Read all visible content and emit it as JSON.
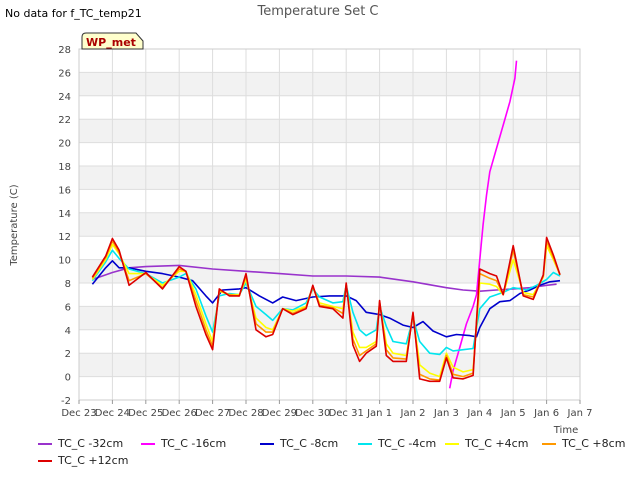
{
  "chart_data": {
    "type": "line",
    "title": "Temperature Set C",
    "corner_note": "No data for f_TC_temp21",
    "site_badge": "WP_met",
    "xlabel": "Time",
    "ylabel": "Temperature (C)",
    "ylim": [
      -2,
      28
    ],
    "yticks": [
      -2,
      0,
      2,
      4,
      6,
      8,
      10,
      12,
      14,
      16,
      18,
      20,
      22,
      24,
      26,
      28
    ],
    "xlim": [
      0,
      15
    ],
    "xticks": [
      {
        "x": 0,
        "label": "Dec 23"
      },
      {
        "x": 1,
        "label": "Dec 24"
      },
      {
        "x": 2,
        "label": "Dec 25"
      },
      {
        "x": 3,
        "label": "Dec 26"
      },
      {
        "x": 4,
        "label": "Dec 27"
      },
      {
        "x": 5,
        "label": "Dec 28"
      },
      {
        "x": 6,
        "label": "Dec 29"
      },
      {
        "x": 7,
        "label": "Dec 30"
      },
      {
        "x": 8,
        "label": "Dec 31"
      },
      {
        "x": 9,
        "label": "Jan 1"
      },
      {
        "x": 10,
        "label": "Jan 2"
      },
      {
        "x": 11,
        "label": "Jan 3"
      },
      {
        "x": 12,
        "label": "Jan 4"
      },
      {
        "x": 13,
        "label": "Jan 5"
      },
      {
        "x": 14,
        "label": "Jan 6"
      },
      {
        "x": 15,
        "label": "Jan 7"
      }
    ],
    "grid": true,
    "legend_position": "bottom",
    "series": [
      {
        "name": "TC_C -32cm",
        "color": "#9933cc",
        "points": [
          [
            0.4,
            8.3
          ],
          [
            1,
            8.9
          ],
          [
            1.5,
            9.3
          ],
          [
            2,
            9.4
          ],
          [
            3,
            9.5
          ],
          [
            4,
            9.2
          ],
          [
            5,
            9.0
          ],
          [
            6,
            8.8
          ],
          [
            7,
            8.6
          ],
          [
            8,
            8.6
          ],
          [
            9,
            8.5
          ],
          [
            10,
            8.1
          ],
          [
            11,
            7.6
          ],
          [
            11.5,
            7.4
          ],
          [
            12,
            7.3
          ],
          [
            12.5,
            7.4
          ],
          [
            13,
            7.5
          ],
          [
            13.5,
            7.6
          ],
          [
            14,
            7.8
          ],
          [
            14.3,
            7.9
          ]
        ]
      },
      {
        "name": "TC_C -16cm",
        "color": "#ff00ff",
        "points": [
          [
            11.1,
            -1.0
          ],
          [
            11.2,
            0.5
          ],
          [
            11.4,
            2.5
          ],
          [
            11.6,
            4.5
          ],
          [
            11.8,
            6.0
          ],
          [
            11.9,
            7.0
          ],
          [
            12.0,
            10.0
          ],
          [
            12.1,
            13.0
          ],
          [
            12.2,
            15.5
          ],
          [
            12.3,
            17.5
          ],
          [
            12.5,
            19.5
          ],
          [
            12.7,
            21.5
          ],
          [
            12.9,
            23.5
          ],
          [
            13.05,
            25.5
          ],
          [
            13.1,
            27.0
          ]
        ]
      },
      {
        "name": "TC_C -8cm",
        "color": "#0000cc",
        "points": [
          [
            0.4,
            7.9
          ],
          [
            0.8,
            9.3
          ],
          [
            1.0,
            9.9
          ],
          [
            1.2,
            9.3
          ],
          [
            1.5,
            9.3
          ],
          [
            2,
            9.0
          ],
          [
            2.5,
            8.8
          ],
          [
            3,
            8.5
          ],
          [
            3.4,
            8.2
          ],
          [
            3.8,
            6.9
          ],
          [
            4,
            6.3
          ],
          [
            4.3,
            7.4
          ],
          [
            4.8,
            7.5
          ],
          [
            5,
            7.6
          ],
          [
            5.4,
            6.9
          ],
          [
            5.8,
            6.3
          ],
          [
            6.1,
            6.8
          ],
          [
            6.5,
            6.5
          ],
          [
            7,
            6.8
          ],
          [
            7.5,
            6.9
          ],
          [
            8,
            6.9
          ],
          [
            8.3,
            6.5
          ],
          [
            8.6,
            5.5
          ],
          [
            9,
            5.3
          ],
          [
            9.3,
            5.0
          ],
          [
            9.7,
            4.4
          ],
          [
            10,
            4.2
          ],
          [
            10.3,
            4.7
          ],
          [
            10.6,
            3.9
          ],
          [
            11,
            3.4
          ],
          [
            11.3,
            3.6
          ],
          [
            11.7,
            3.5
          ],
          [
            11.9,
            3.4
          ],
          [
            12,
            4.2
          ],
          [
            12.3,
            5.8
          ],
          [
            12.6,
            6.4
          ],
          [
            12.9,
            6.5
          ],
          [
            13.2,
            7.1
          ],
          [
            13.5,
            7.4
          ],
          [
            13.8,
            7.8
          ],
          [
            14.1,
            8.1
          ],
          [
            14.4,
            8.2
          ]
        ]
      },
      {
        "name": "TC_C -4cm",
        "color": "#00e5ee",
        "points": [
          [
            0.4,
            8.2
          ],
          [
            0.8,
            9.8
          ],
          [
            1.0,
            10.8
          ],
          [
            1.2,
            10.1
          ],
          [
            1.5,
            9.2
          ],
          [
            2,
            8.8
          ],
          [
            2.5,
            8.0
          ],
          [
            3,
            8.5
          ],
          [
            3.2,
            8.8
          ],
          [
            3.5,
            7.5
          ],
          [
            3.8,
            5.2
          ],
          [
            4,
            3.8
          ],
          [
            4.2,
            6.9
          ],
          [
            4.5,
            7.1
          ],
          [
            4.8,
            7.0
          ],
          [
            5,
            8.0
          ],
          [
            5.3,
            6.0
          ],
          [
            5.6,
            5.3
          ],
          [
            5.8,
            4.8
          ],
          [
            6.1,
            5.8
          ],
          [
            6.4,
            5.7
          ],
          [
            6.8,
            6.3
          ],
          [
            7,
            7.5
          ],
          [
            7.2,
            6.8
          ],
          [
            7.6,
            6.3
          ],
          [
            7.9,
            6.4
          ],
          [
            8,
            7.8
          ],
          [
            8.2,
            5.5
          ],
          [
            8.4,
            4.0
          ],
          [
            8.6,
            3.5
          ],
          [
            8.9,
            4.0
          ],
          [
            9,
            6.0
          ],
          [
            9.2,
            4.3
          ],
          [
            9.4,
            3.0
          ],
          [
            9.8,
            2.8
          ],
          [
            10,
            5.0
          ],
          [
            10.2,
            3.0
          ],
          [
            10.5,
            2.0
          ],
          [
            10.8,
            1.9
          ],
          [
            11,
            2.5
          ],
          [
            11.2,
            2.2
          ],
          [
            11.5,
            2.3
          ],
          [
            11.8,
            2.4
          ],
          [
            12,
            5.8
          ],
          [
            12.3,
            6.8
          ],
          [
            12.7,
            7.2
          ],
          [
            13,
            7.6
          ],
          [
            13.4,
            7.4
          ],
          [
            13.7,
            7.8
          ],
          [
            14,
            8.3
          ],
          [
            14.2,
            8.9
          ],
          [
            14.4,
            8.6
          ]
        ]
      },
      {
        "name": "TC_C +4cm",
        "color": "#ffff00",
        "points": [
          [
            0.4,
            8.3
          ],
          [
            0.8,
            10.0
          ],
          [
            1.0,
            11.3
          ],
          [
            1.2,
            10.5
          ],
          [
            1.5,
            8.8
          ],
          [
            2,
            8.8
          ],
          [
            2.5,
            7.8
          ],
          [
            3,
            9.0
          ],
          [
            3.2,
            9.0
          ],
          [
            3.5,
            7.0
          ],
          [
            3.8,
            4.5
          ],
          [
            4,
            3.0
          ],
          [
            4.2,
            7.3
          ],
          [
            4.5,
            7.0
          ],
          [
            4.8,
            7.0
          ],
          [
            5,
            8.3
          ],
          [
            5.3,
            5.0
          ],
          [
            5.6,
            4.2
          ],
          [
            5.8,
            4.0
          ],
          [
            6.1,
            5.8
          ],
          [
            6.4,
            5.6
          ],
          [
            6.8,
            6.0
          ],
          [
            7,
            7.7
          ],
          [
            7.2,
            6.3
          ],
          [
            7.6,
            6.0
          ],
          [
            7.9,
            5.8
          ],
          [
            8,
            7.8
          ],
          [
            8.2,
            3.8
          ],
          [
            8.4,
            2.5
          ],
          [
            8.6,
            2.5
          ],
          [
            8.9,
            3.0
          ],
          [
            9,
            6.3
          ],
          [
            9.2,
            2.8
          ],
          [
            9.4,
            2.0
          ],
          [
            9.8,
            1.8
          ],
          [
            10,
            5.3
          ],
          [
            10.2,
            1.0
          ],
          [
            10.5,
            0.3
          ],
          [
            10.8,
            0.0
          ],
          [
            11,
            2.0
          ],
          [
            11.2,
            0.8
          ],
          [
            11.5,
            0.4
          ],
          [
            11.8,
            0.6
          ],
          [
            12,
            8.0
          ],
          [
            12.3,
            7.9
          ],
          [
            12.5,
            7.7
          ],
          [
            12.7,
            7.0
          ],
          [
            13,
            10.0
          ],
          [
            13.3,
            7.2
          ],
          [
            13.6,
            7.0
          ],
          [
            13.9,
            8.5
          ],
          [
            14,
            11.2
          ],
          [
            14.2,
            10.0
          ],
          [
            14.4,
            8.7
          ]
        ]
      },
      {
        "name": "TC_C +8cm",
        "color": "#ff9900",
        "points": [
          [
            0.4,
            8.4
          ],
          [
            0.8,
            10.2
          ],
          [
            1.0,
            11.6
          ],
          [
            1.2,
            10.6
          ],
          [
            1.5,
            8.2
          ],
          [
            2,
            8.8
          ],
          [
            2.5,
            7.6
          ],
          [
            3,
            9.2
          ],
          [
            3.2,
            9.0
          ],
          [
            3.5,
            6.5
          ],
          [
            3.8,
            4.0
          ],
          [
            4,
            2.6
          ],
          [
            4.2,
            7.4
          ],
          [
            4.5,
            7.0
          ],
          [
            4.8,
            6.9
          ],
          [
            5,
            8.6
          ],
          [
            5.3,
            4.5
          ],
          [
            5.6,
            3.8
          ],
          [
            5.8,
            3.8
          ],
          [
            6.1,
            5.8
          ],
          [
            6.4,
            5.4
          ],
          [
            6.8,
            5.9
          ],
          [
            7,
            7.7
          ],
          [
            7.2,
            6.1
          ],
          [
            7.6,
            5.9
          ],
          [
            7.9,
            5.4
          ],
          [
            8,
            7.9
          ],
          [
            8.2,
            3.2
          ],
          [
            8.4,
            1.8
          ],
          [
            8.6,
            2.2
          ],
          [
            8.9,
            2.8
          ],
          [
            9,
            6.4
          ],
          [
            9.2,
            2.3
          ],
          [
            9.4,
            1.6
          ],
          [
            9.8,
            1.5
          ],
          [
            10,
            5.4
          ],
          [
            10.2,
            0.2
          ],
          [
            10.5,
            -0.2
          ],
          [
            10.8,
            -0.3
          ],
          [
            11,
            1.8
          ],
          [
            11.2,
            0.2
          ],
          [
            11.5,
            0.0
          ],
          [
            11.8,
            0.3
          ],
          [
            12,
            8.8
          ],
          [
            12.3,
            8.4
          ],
          [
            12.5,
            8.2
          ],
          [
            12.7,
            7.0
          ],
          [
            13,
            10.8
          ],
          [
            13.3,
            7.0
          ],
          [
            13.6,
            6.8
          ],
          [
            13.9,
            8.6
          ],
          [
            14,
            11.6
          ],
          [
            14.2,
            10.2
          ],
          [
            14.4,
            8.7
          ]
        ]
      },
      {
        "name": "TC_C +12cm",
        "color": "#dd0000",
        "points": [
          [
            0.4,
            8.5
          ],
          [
            0.8,
            10.3
          ],
          [
            1.0,
            11.8
          ],
          [
            1.2,
            10.8
          ],
          [
            1.5,
            7.8
          ],
          [
            2,
            8.9
          ],
          [
            2.5,
            7.5
          ],
          [
            3,
            9.4
          ],
          [
            3.2,
            9.0
          ],
          [
            3.5,
            6.0
          ],
          [
            3.8,
            3.6
          ],
          [
            4,
            2.3
          ],
          [
            4.2,
            7.5
          ],
          [
            4.5,
            6.9
          ],
          [
            4.8,
            6.9
          ],
          [
            5,
            8.8
          ],
          [
            5.3,
            4.0
          ],
          [
            5.6,
            3.4
          ],
          [
            5.8,
            3.6
          ],
          [
            6.1,
            5.8
          ],
          [
            6.4,
            5.3
          ],
          [
            6.8,
            5.8
          ],
          [
            7,
            7.8
          ],
          [
            7.2,
            6.0
          ],
          [
            7.6,
            5.8
          ],
          [
            7.9,
            5.0
          ],
          [
            8,
            8.0
          ],
          [
            8.2,
            2.7
          ],
          [
            8.4,
            1.3
          ],
          [
            8.6,
            2.0
          ],
          [
            8.9,
            2.6
          ],
          [
            9,
            6.5
          ],
          [
            9.2,
            1.8
          ],
          [
            9.4,
            1.3
          ],
          [
            9.8,
            1.3
          ],
          [
            10,
            5.5
          ],
          [
            10.2,
            -0.2
          ],
          [
            10.5,
            -0.4
          ],
          [
            10.8,
            -0.4
          ],
          [
            11,
            1.6
          ],
          [
            11.2,
            -0.1
          ],
          [
            11.5,
            -0.2
          ],
          [
            11.8,
            0.1
          ],
          [
            12,
            9.2
          ],
          [
            12.3,
            8.8
          ],
          [
            12.5,
            8.6
          ],
          [
            12.7,
            7.0
          ],
          [
            13,
            11.2
          ],
          [
            13.3,
            6.9
          ],
          [
            13.6,
            6.6
          ],
          [
            13.9,
            8.7
          ],
          [
            14,
            11.9
          ],
          [
            14.2,
            10.4
          ],
          [
            14.4,
            8.7
          ]
        ]
      }
    ]
  }
}
